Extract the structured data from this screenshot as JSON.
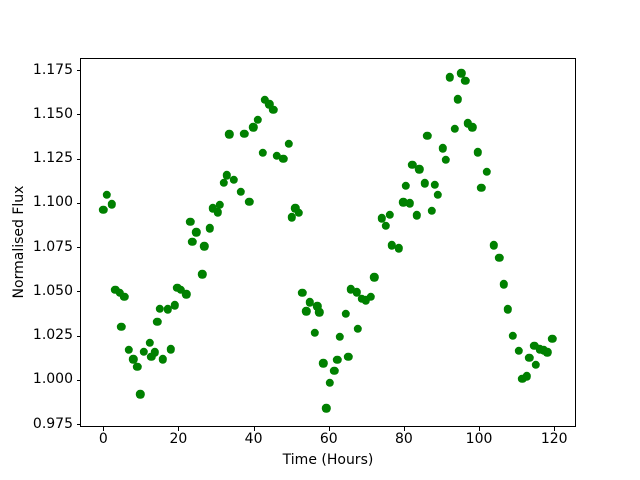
{
  "chart_data": {
    "type": "scatter",
    "title": "",
    "xlabel": "Time (Hours)",
    "ylabel": "Normalised Flux",
    "xlim": [
      -6.2,
      125.8
    ],
    "ylim": [
      0.9734,
      1.1822
    ],
    "xticks": [
      0,
      20,
      40,
      60,
      80,
      100,
      120
    ],
    "yticks": [
      0.975,
      1.0,
      1.025,
      1.05,
      1.075,
      1.1,
      1.125,
      1.15,
      1.175
    ],
    "grid": false,
    "legend": false,
    "marker_color": "#008000",
    "marker_diameter_px": 8.4,
    "series": [
      {
        "name": "normalised-flux",
        "x": [
          0.0,
          0.9,
          2.2,
          3.2,
          4.4,
          4.8,
          5.6,
          6.8,
          8.0,
          9.1,
          9.9,
          10.8,
          12.3,
          12.8,
          13.7,
          14.4,
          15.0,
          15.9,
          17.2,
          17.9,
          19.0,
          19.7,
          20.7,
          22.1,
          23.2,
          23.7,
          24.8,
          26.3,
          26.9,
          28.3,
          29.1,
          30.5,
          31.0,
          32.0,
          32.9,
          33.5,
          34.7,
          36.6,
          37.5,
          38.9,
          39.9,
          41.1,
          42.4,
          43.0,
          44.2,
          45.2,
          46.1,
          47.9,
          49.3,
          50.1,
          51.1,
          52.1,
          53.0,
          54.0,
          54.9,
          56.3,
          57.0,
          57.5,
          58.6,
          59.3,
          60.2,
          61.5,
          62.3,
          63.0,
          64.6,
          65.2,
          65.9,
          67.4,
          67.7,
          68.8,
          69.9,
          71.2,
          72.1,
          74.1,
          75.2,
          76.3,
          76.8,
          78.6,
          79.8,
          80.5,
          81.5,
          82.2,
          83.4,
          84.1,
          85.6,
          86.2,
          87.4,
          88.2,
          89.1,
          90.4,
          91.2,
          92.2,
          93.5,
          94.3,
          95.3,
          96.3,
          97.0,
          98.2,
          99.7,
          100.6,
          102.1,
          103.9,
          105.4,
          106.6,
          107.6,
          109.0,
          110.6,
          111.5,
          112.7,
          113.4,
          114.7,
          115.1,
          116.2,
          117.3,
          118.2,
          119.5
        ],
        "y": [
          1.0961,
          1.1046,
          1.0992,
          1.051,
          1.0491,
          1.03,
          1.0469,
          1.0169,
          1.0116,
          1.0074,
          0.9918,
          1.016,
          1.021,
          1.0132,
          1.0155,
          1.0327,
          1.0402,
          1.0116,
          1.0398,
          1.0172,
          1.0421,
          1.0519,
          1.0509,
          1.0484,
          1.0892,
          1.0782,
          1.0834,
          1.0597,
          1.0755,
          1.0857,
          1.097,
          1.0947,
          1.0991,
          1.1114,
          1.1157,
          1.1389,
          1.1132,
          1.1063,
          1.1391,
          1.1006,
          1.1428,
          1.1471,
          1.1283,
          1.1582,
          1.1557,
          1.1526,
          1.1268,
          1.1249,
          1.1334,
          1.0919,
          1.097,
          1.0944,
          1.0494,
          1.0387,
          1.0438,
          1.0265,
          1.0417,
          1.0383,
          1.0093,
          0.9839,
          0.9984,
          1.005,
          1.0112,
          1.0242,
          1.0374,
          1.0132,
          1.0511,
          1.0496,
          1.0289,
          1.0458,
          1.0451,
          1.047,
          1.058,
          1.0914,
          1.0871,
          1.0933,
          1.0761,
          1.0744,
          1.1004,
          1.1097,
          1.0998,
          1.1217,
          1.093,
          1.119,
          1.1112,
          1.1378,
          1.0954,
          1.1104,
          1.1045,
          1.1309,
          1.1245,
          1.171,
          1.1419,
          1.1586,
          1.1733,
          1.169,
          1.145,
          1.1427,
          1.1287,
          1.1087,
          1.1176,
          1.076,
          1.069,
          1.0541,
          1.0398,
          1.0251,
          1.0163,
          1.0005,
          1.0021,
          1.0125,
          1.0193,
          1.0086,
          1.0174,
          1.0167,
          1.0156,
          1.0232
        ]
      }
    ]
  }
}
